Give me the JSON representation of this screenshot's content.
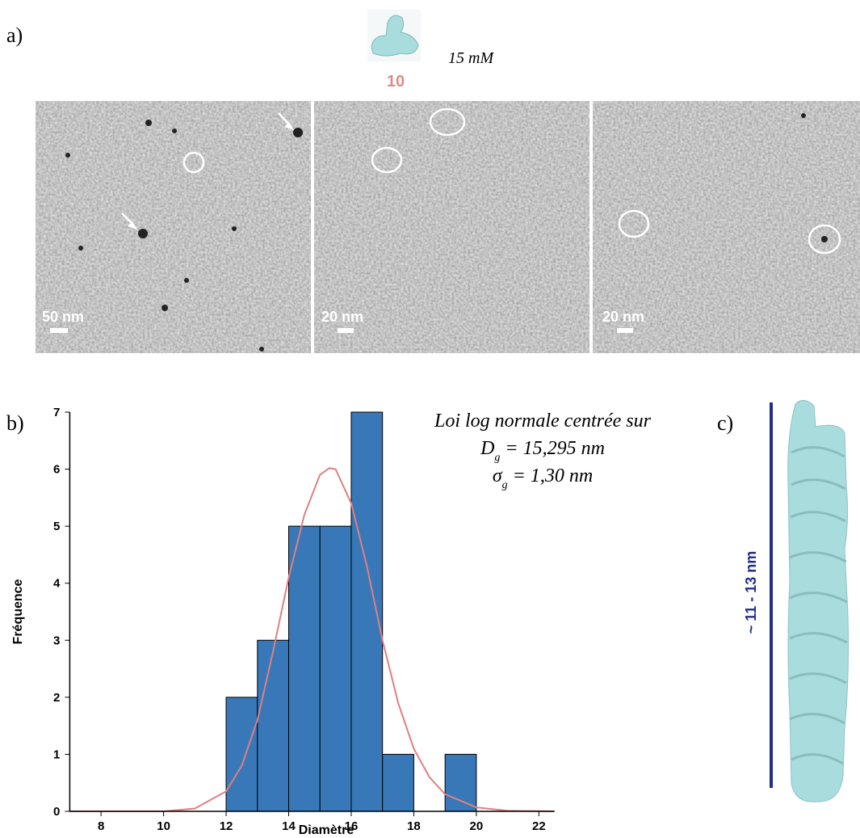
{
  "panel_a": {
    "label": "a)",
    "compound": "10",
    "concentration": "15 mM",
    "scale_bars": [
      "50 nm",
      "20 nm",
      "20 nm"
    ]
  },
  "panel_b": {
    "label": "b)"
  },
  "panel_c": {
    "label": "c)",
    "length": "~ 11 - 13 nm"
  },
  "chart_data": {
    "type": "histogram",
    "x_label": "Diamètre",
    "y_label": "Fréquence",
    "bins": [
      12,
      13,
      14,
      15,
      16,
      17,
      18,
      19,
      20
    ],
    "values": [
      2,
      3,
      5,
      5,
      7,
      1,
      0,
      1
    ],
    "color": "#3878b8",
    "fit": {
      "color": "#e07f80",
      "x": [
        7,
        10,
        11,
        12,
        12.5,
        13,
        13.5,
        14,
        14.5,
        15,
        15.3,
        15.5,
        16,
        16.5,
        17,
        17.5,
        18,
        18.5,
        19,
        20,
        21,
        22.5
      ],
      "values": [
        0,
        0,
        0.05,
        0.35,
        0.8,
        1.6,
        2.8,
        4.1,
        5.2,
        5.9,
        6.02,
        6.0,
        5.4,
        4.3,
        3.0,
        1.9,
        1.1,
        0.6,
        0.3,
        0.07,
        0.01,
        0
      ]
    },
    "annotation": [
      {
        "text": "Loi log normale centrée sur"
      },
      {
        "symbol": "D",
        "sub": "g",
        "text": " = 15,295 nm"
      },
      {
        "symbol": "σ",
        "sub": "g",
        "text": "  = 1,30 nm"
      }
    ],
    "xlim": [
      7,
      22.5
    ],
    "xticks": [
      8,
      10,
      12,
      14,
      16,
      18,
      20,
      22
    ],
    "ylim": [
      0,
      7
    ],
    "yticks": [
      0,
      1,
      2,
      3,
      4,
      5,
      6,
      7
    ]
  }
}
